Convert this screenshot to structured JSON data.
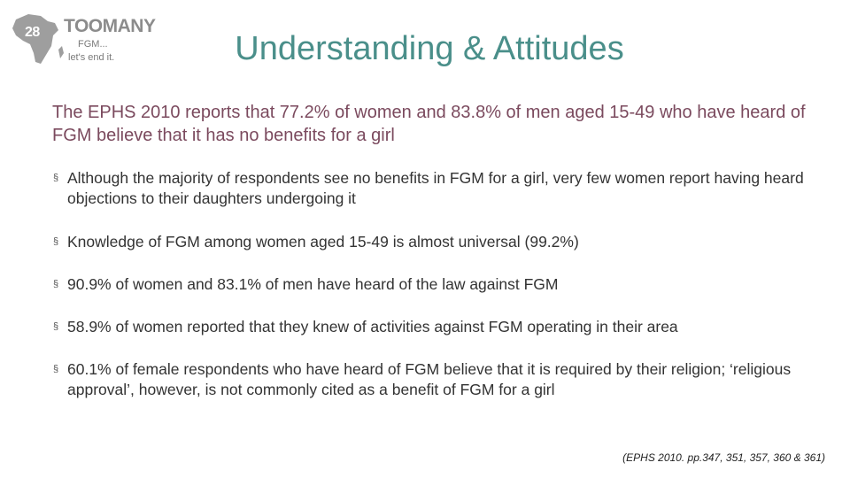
{
  "logo": {
    "brand_number": "28",
    "brand_word": "TOOMANY",
    "tagline_1": "FGM...",
    "tagline_2": "let's end it.",
    "icon": "africa-map-icon"
  },
  "title": "Understanding & Attitudes",
  "lead": "The EPHS 2010 reports that 77.2% of women and 83.8% of men aged 15-49 who have heard of FGM believe that it has no benefits for a girl",
  "bullet_marker": "§",
  "bullets": [
    "Although the majority of respondents see no benefits in FGM for a girl, very few women report having heard objections to their daughters undergoing it",
    "Knowledge of FGM among women aged 15-49 is almost universal (99.2%)",
    "90.9% of women and 83.1% of men have heard of the law against FGM",
    "58.9% of women reported that they knew of activities against FGM operating in their area",
    "60.1% of female respondents who have heard of FGM believe that it is required by their religion; ‘religious approval’, however, is not commonly cited as a benefit of FGM for a girl"
  ],
  "citation": "(EPHS 2010. pp.347, 351, 357, 360 & 361)"
}
